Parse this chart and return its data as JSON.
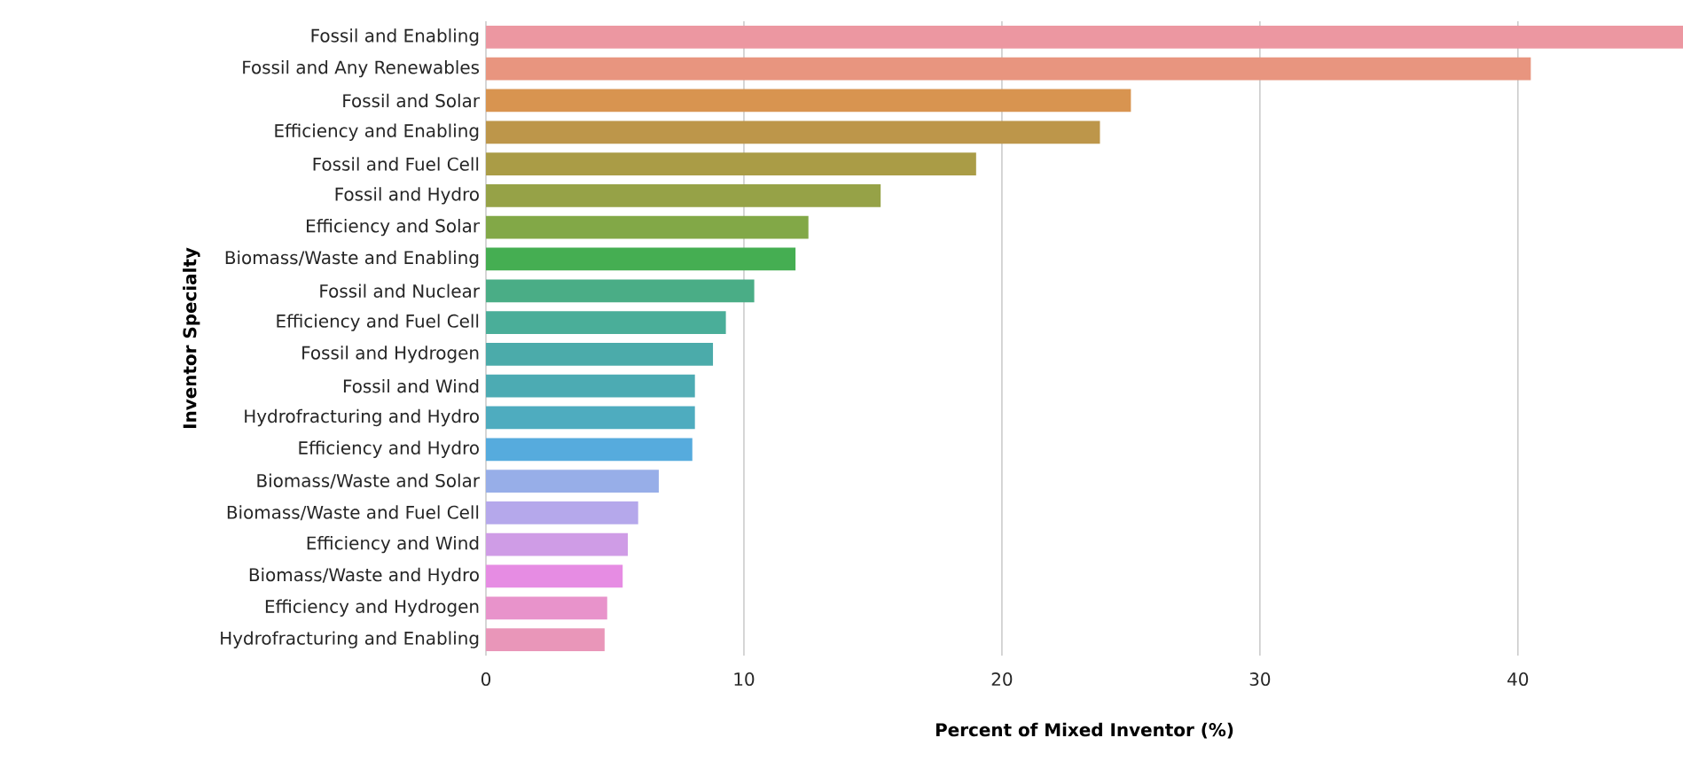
{
  "chart_data": {
    "type": "bar",
    "orientation": "horizontal",
    "categories": [
      "Fossil and Enabling",
      "Fossil and Any Renewables",
      "Fossil and Solar",
      "Efficiency and Enabling",
      "Fossil and Fuel Cell",
      "Fossil and Hydro",
      "Efficiency and Solar",
      "Biomass/Waste and Enabling",
      "Fossil and Nuclear",
      "Efficiency and Fuel Cell",
      "Fossil and Hydrogen",
      "Fossil and Wind",
      "Hydrofracturing and Hydro",
      "Efficiency and Hydro",
      "Biomass/Waste and Solar",
      "Biomass/Waste and Fuel Cell",
      "Efficiency and Wind",
      "Biomass/Waste and Hydro",
      "Efficiency and Hydrogen",
      "Hydrofracturing and Enabling"
    ],
    "values": [
      46.4,
      40.5,
      25.0,
      23.8,
      19.0,
      15.3,
      12.5,
      12.0,
      10.4,
      9.3,
      8.8,
      8.1,
      8.1,
      8.0,
      6.7,
      5.9,
      5.5,
      5.3,
      4.7,
      4.6
    ],
    "colors": [
      "#ec97a1",
      "#e8957f",
      "#d89450",
      "#bd964a",
      "#aa9c46",
      "#96a247",
      "#82a847",
      "#45ae52",
      "#4aad86",
      "#4aae99",
      "#4babaa",
      "#4cabb3",
      "#4eacbf",
      "#56abdd",
      "#97aee8",
      "#b5a8eb",
      "#cf9ce6",
      "#e68ce3",
      "#e893cb",
      "#e996b9"
    ],
    "xlabel": "Percent of Mixed Inventor (%)",
    "ylabel": "Inventor Specialty",
    "xlim": [
      0,
      46.4
    ],
    "xticks": [
      0,
      10,
      20,
      30,
      40
    ],
    "grid": "x"
  }
}
